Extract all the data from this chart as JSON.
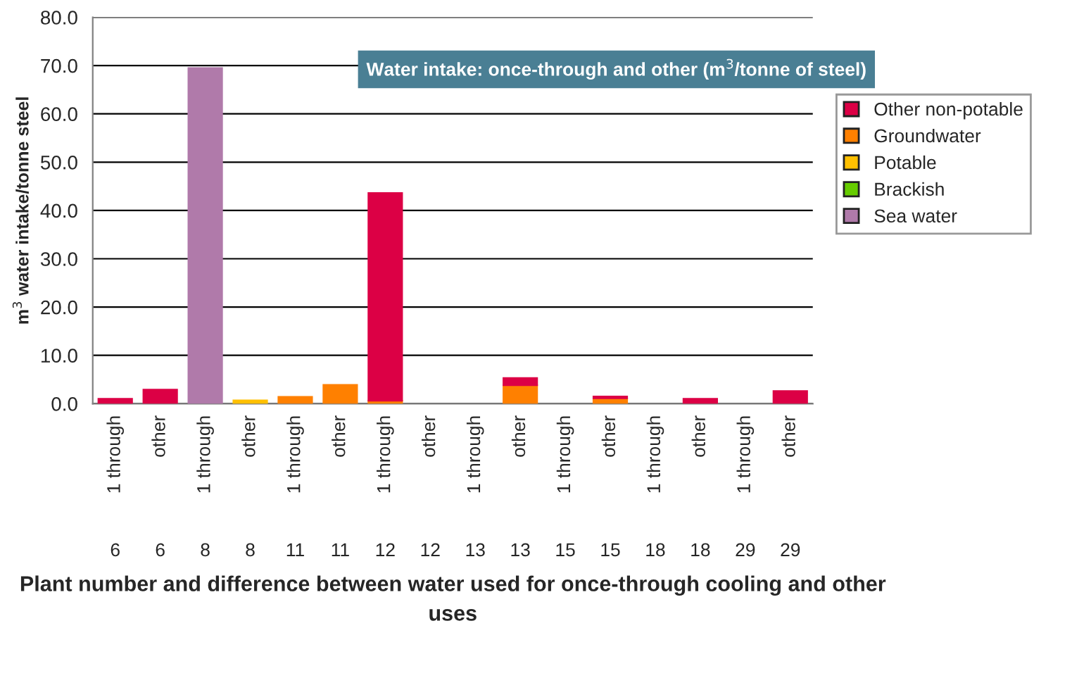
{
  "chart_data": {
    "type": "bar",
    "stacked": true,
    "title": "Water intake: once-through and other (m$^{3}$/tonne of steel)",
    "annotations": [
      "Plant number and difference between water used for once-through cooling and other uses"
    ],
    "ylabel": "m$^{3}$ water intake/tonne steel",
    "categories": [
      "1 through\n6",
      "other\n6",
      "1 through\n8",
      "other\n8",
      "1 through\n11",
      "other\n11",
      "1 through\n12",
      "other\n12",
      "1 through\n13",
      "other\n13",
      "1 through\n15",
      "other\n15",
      "1 through\n18",
      "other\n18",
      "1 through\n29",
      "other\n29"
    ],
    "series": [
      {
        "name": "Sea water",
        "color": "#b07aaa",
        "values": [
          null,
          null,
          69.5,
          null,
          null,
          null,
          null,
          null,
          null,
          null,
          null,
          null,
          null,
          null,
          null,
          null
        ]
      },
      {
        "name": "Brackish",
        "color": "#66cc00",
        "values": [
          null,
          null,
          null,
          null,
          null,
          null,
          null,
          null,
          null,
          null,
          null,
          null,
          null,
          null,
          null,
          null
        ]
      },
      {
        "name": "Potable",
        "color": "#ffc000",
        "values": [
          null,
          null,
          null,
          0.7,
          null,
          null,
          null,
          null,
          null,
          null,
          null,
          null,
          null,
          null,
          null,
          null
        ]
      },
      {
        "name": "Groundwater",
        "color": "#ff8000",
        "values": [
          null,
          null,
          null,
          null,
          1.4,
          3.9,
          0.6,
          null,
          null,
          3.8,
          null,
          1.1,
          null,
          null,
          null,
          null
        ]
      },
      {
        "name": "Other non-potable",
        "color": "#dc0045",
        "values": [
          1.0,
          2.9,
          null,
          null,
          null,
          null,
          43.0,
          null,
          null,
          1.5,
          null,
          0.4,
          null,
          1.0,
          null,
          2.6
        ]
      }
    ],
    "ylim": [
      0,
      80
    ],
    "yticks": [
      {
        "value": 0,
        "label": "0.0"
      },
      {
        "value": 10,
        "label": "10.0"
      },
      {
        "value": 20,
        "label": "20.0"
      },
      {
        "value": 30,
        "label": "30.0"
      },
      {
        "value": 40,
        "label": "40.0"
      },
      {
        "value": 50,
        "label": "50.0"
      },
      {
        "value": 60,
        "label": "60.0"
      },
      {
        "value": 70,
        "label": "70.0"
      },
      {
        "value": 80,
        "label": "80.0"
      }
    ],
    "grid": "y",
    "legend": "right"
  }
}
